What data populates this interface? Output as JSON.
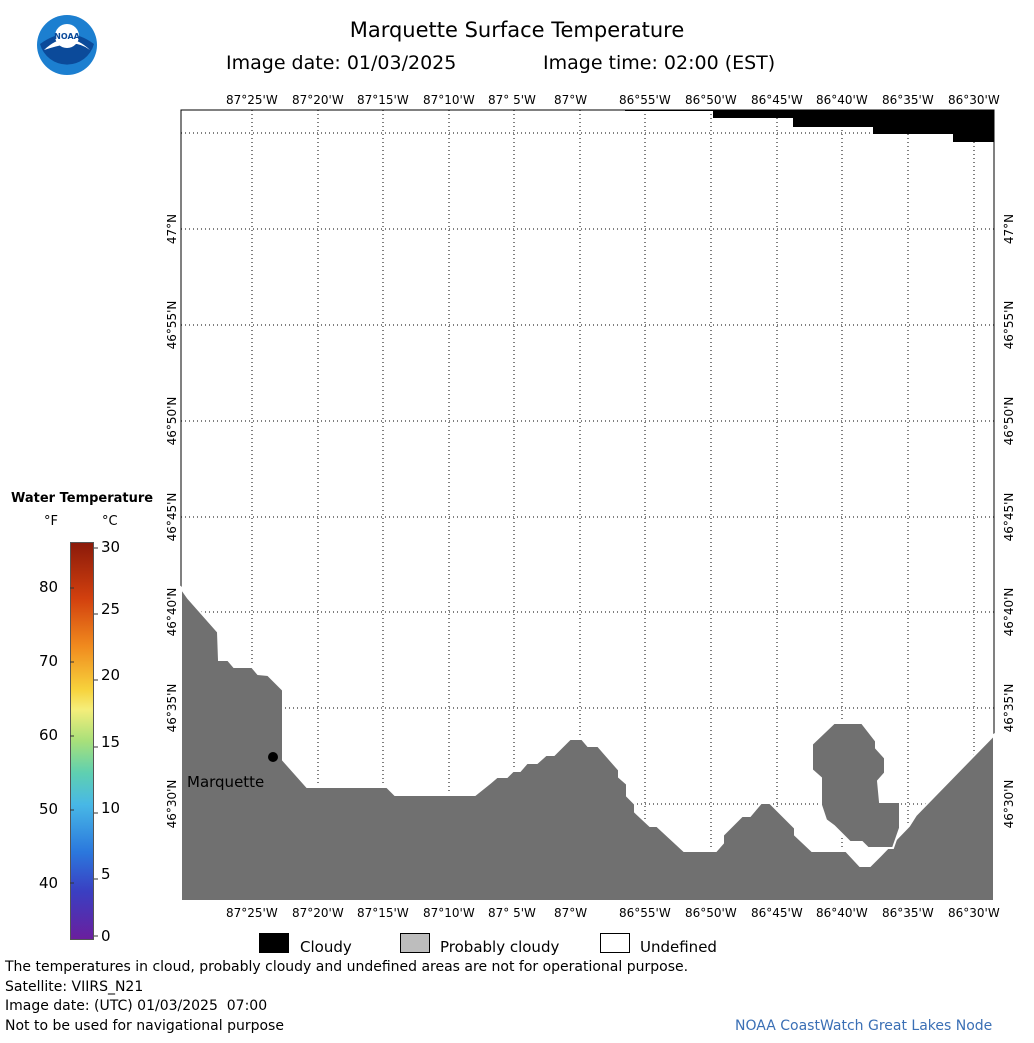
{
  "header": {
    "title": "Marquette Surface Temperature",
    "image_date_label": "Image date: 01/03/2025",
    "image_time_label": "Image time: 02:00 (EST)"
  },
  "map": {
    "lon_labels": [
      "87°25'W",
      "87°20'W",
      "87°15'W",
      "87°10'W",
      "87° 5'W",
      "87°W",
      "86°55'W",
      "86°50'W",
      "86°45'W",
      "86°40'W",
      "86°35'W",
      "86°30'W"
    ],
    "lat_labels": [
      "47°N",
      "46°55'N",
      "46°50'N",
      "46°45'N",
      "46°40'N",
      "46°35'N",
      "46°30'N"
    ],
    "city_label": "Marquette",
    "land_color": "#707070",
    "cloud_color": "#000000"
  },
  "color_legend": {
    "title": "Water Temperature",
    "unit_f": "°F",
    "unit_c": "°C",
    "f_ticks": [
      "80",
      "70",
      "60",
      "50",
      "40"
    ],
    "c_ticks": [
      "30",
      "25",
      "20",
      "15",
      "10",
      "5",
      "0"
    ]
  },
  "key": {
    "cloudy": "Cloudy",
    "probably_cloudy": "Probably cloudy",
    "undefined": "Undefined"
  },
  "footer": {
    "disclaimer": "The temperatures in cloud, probably cloudy and undefined areas are not for operational purpose.",
    "satellite": "Satellite: VIIRS_N21",
    "utc_date": "Image date: (UTC) 01/03/2025  07:00",
    "nav_warning": "Not to be used for navigational purpose",
    "credit": "NOAA CoastWatch Great Lakes Node"
  }
}
